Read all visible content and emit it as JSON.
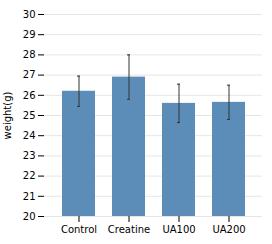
{
  "chart_data": {
    "type": "bar",
    "categories": [
      "Control",
      "Creatine",
      "UA100",
      "UA200"
    ],
    "values": [
      26.2,
      26.9,
      25.6,
      25.65
    ],
    "errors": [
      0.75,
      1.1,
      0.95,
      0.85
    ],
    "color": "#5B8DB8",
    "ylabel": "weight(g)",
    "ylim": [
      20,
      30
    ],
    "yticks": [
      20,
      21,
      22,
      23,
      24,
      25,
      26,
      27,
      28,
      29,
      30
    ],
    "grid": true
  }
}
